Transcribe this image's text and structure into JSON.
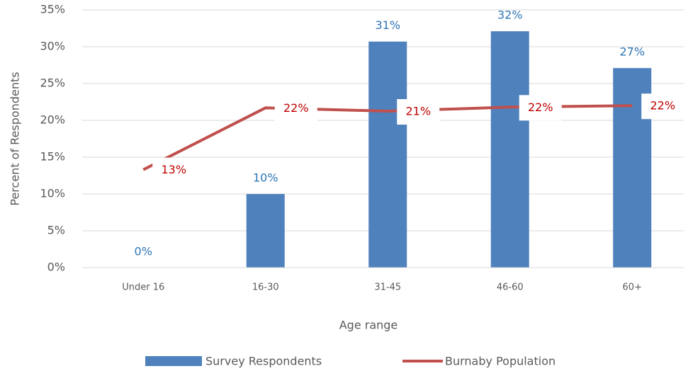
{
  "chart_data": {
    "type": "bar-line",
    "x_label": "Age range",
    "y_label": "Percent of Respondents",
    "categories": [
      "Under 16",
      "16-30",
      "31-45",
      "46-60",
      "60+"
    ],
    "series": [
      {
        "name": "Survey Respondents",
        "type": "bar",
        "color": "#4f81bd",
        "label_color": "#2e75b6",
        "values": [
          0,
          10,
          30.7,
          32.1,
          27.1
        ],
        "value_labels": [
          "0%",
          "10%",
          "31%",
          "32%",
          "27%"
        ]
      },
      {
        "name": "Burnaby Population",
        "type": "line",
        "color": "#c0504d",
        "label_color": "#c00000",
        "values": [
          13.3,
          21.7,
          21.25,
          21.8,
          22.0
        ],
        "value_labels": [
          "13%",
          "22%",
          "21%",
          "22%",
          "22%"
        ]
      }
    ],
    "ylim": [
      0,
      35
    ],
    "yticks": [
      {
        "value": 0,
        "label": "0%"
      },
      {
        "value": 5,
        "label": "5%"
      },
      {
        "value": 10,
        "label": "10%"
      },
      {
        "value": 15,
        "label": "15%"
      },
      {
        "value": 20,
        "label": "20%"
      },
      {
        "value": 25,
        "label": "25%"
      },
      {
        "value": 30,
        "label": "30%"
      },
      {
        "value": 35,
        "label": "35%"
      }
    ],
    "grid": true,
    "legend": "bottom"
  }
}
